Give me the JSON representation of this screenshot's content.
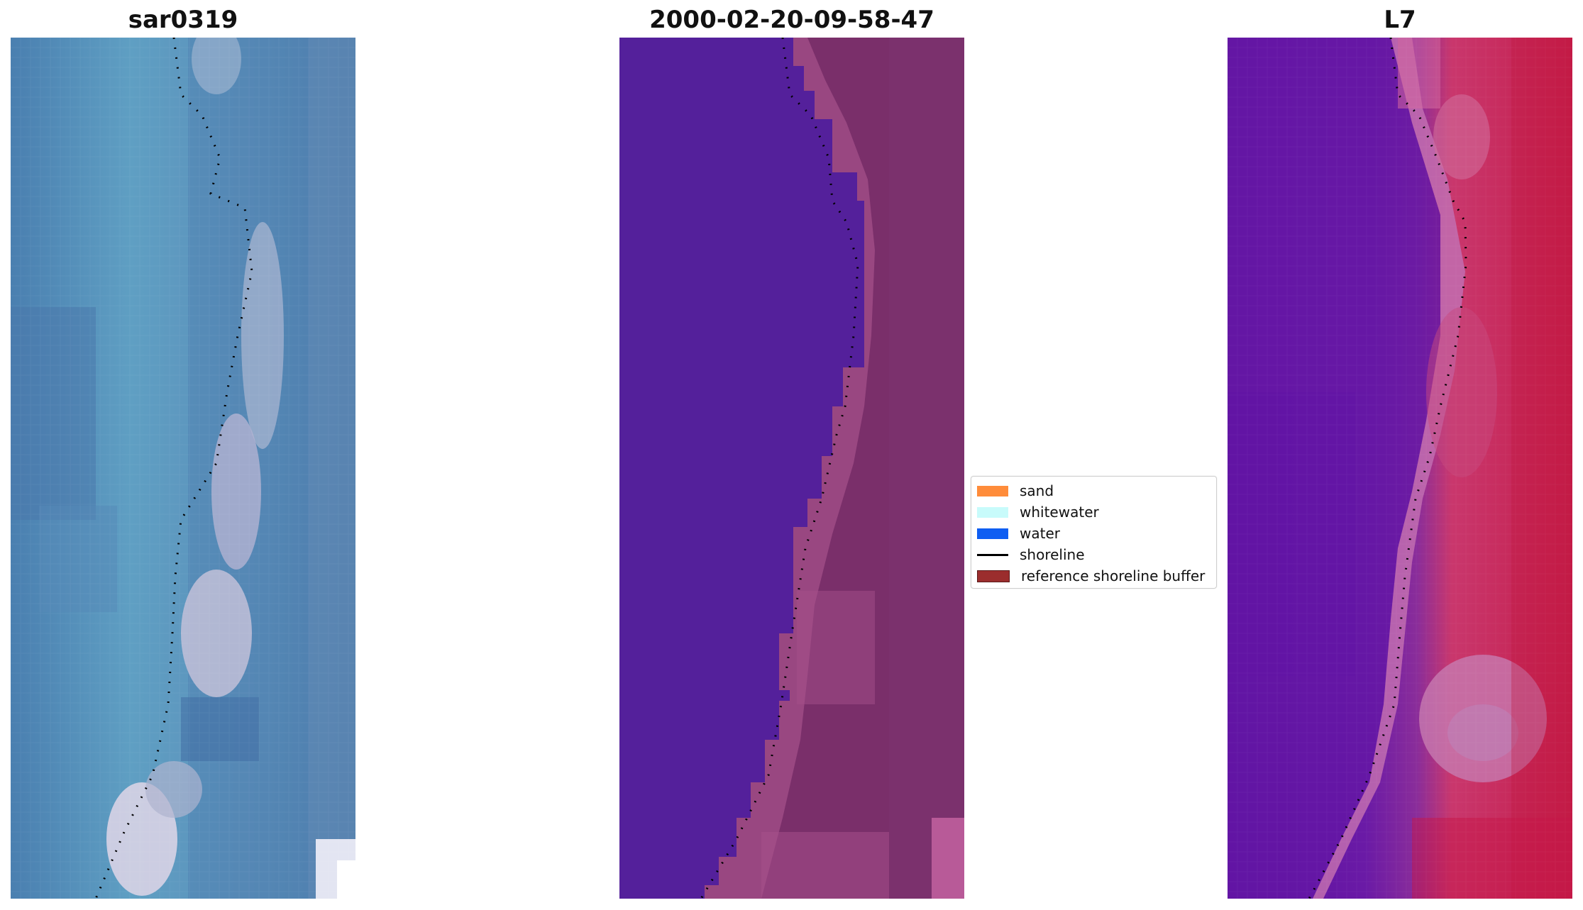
{
  "titles": {
    "left": "sar0319",
    "middle": "2000-02-20-09-58-47",
    "right": "L7"
  },
  "legend": {
    "items": [
      {
        "label": "sand",
        "color": "#ff8c3a",
        "type": "patch"
      },
      {
        "label": "whitewater",
        "color": "#c8fbfb",
        "type": "patch"
      },
      {
        "label": "water",
        "color": "#0f5ef2",
        "type": "patch"
      },
      {
        "label": "shoreline",
        "color": "#000000",
        "type": "line"
      },
      {
        "label": "reference shoreline buffer",
        "color": "#9b2d2d",
        "type": "patch"
      }
    ]
  },
  "colors": {
    "rgb_water": "#4f86b0",
    "rgb_teal": "#5fa2c2",
    "classified_water": "#54209b",
    "classified_sand": "#7a2f6a",
    "false_color_water": "#6a1aa6",
    "false_color_land": "#c8244e"
  }
}
